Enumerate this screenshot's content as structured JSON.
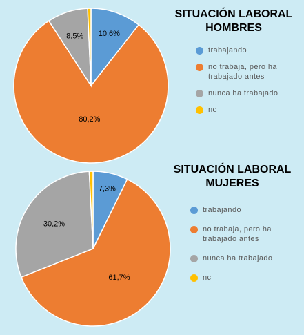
{
  "chart_data": [
    {
      "type": "pie",
      "title": "SITUACIÓN LABORAL\nHOMBRES",
      "categories": [
        "trabajando",
        "no trabaja, pero ha trabajado antes",
        "nunca ha trabajado",
        "nc"
      ],
      "values": [
        10.6,
        80.2,
        8.5,
        0.7
      ],
      "labels": [
        "10,6%",
        "80,2%",
        "8,5%",
        ""
      ],
      "colors": [
        "#5b9bd5",
        "#ed7d31",
        "#a5a5a5",
        "#ffc000"
      ],
      "legend": "right"
    },
    {
      "type": "pie",
      "title": "SITUACIÓN LABORAL\nMUJERES",
      "categories": [
        "trabajando",
        "no trabaja, pero ha trabajado antes",
        "nunca ha trabajado",
        "nc"
      ],
      "values": [
        7.3,
        61.7,
        30.2,
        0.8
      ],
      "labels": [
        "7,3%",
        "61,7%",
        "30,2%",
        ""
      ],
      "colors": [
        "#5b9bd5",
        "#ed7d31",
        "#a5a5a5",
        "#ffc000"
      ],
      "legend": "right"
    }
  ],
  "legend_text": {
    "trabajando": "trabajando",
    "no_trabaja": "no trabaja, pero ha\ntrabajado antes",
    "nunca": "nunca ha trabajado",
    "nc": "nc"
  }
}
